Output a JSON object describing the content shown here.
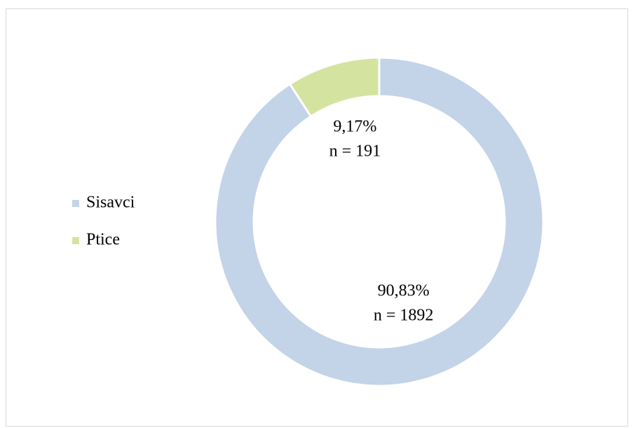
{
  "chart_data": {
    "type": "donut",
    "categories": [
      "Sisavci",
      "Ptice"
    ],
    "values": [
      90.83,
      9.17
    ],
    "value_labels": [
      "90,83%",
      "9,17%"
    ],
    "count_labels": [
      "n = 1892",
      "n = 191"
    ],
    "colors": [
      "#c3d3e8",
      "#d5e3a1"
    ],
    "legend": "left"
  }
}
